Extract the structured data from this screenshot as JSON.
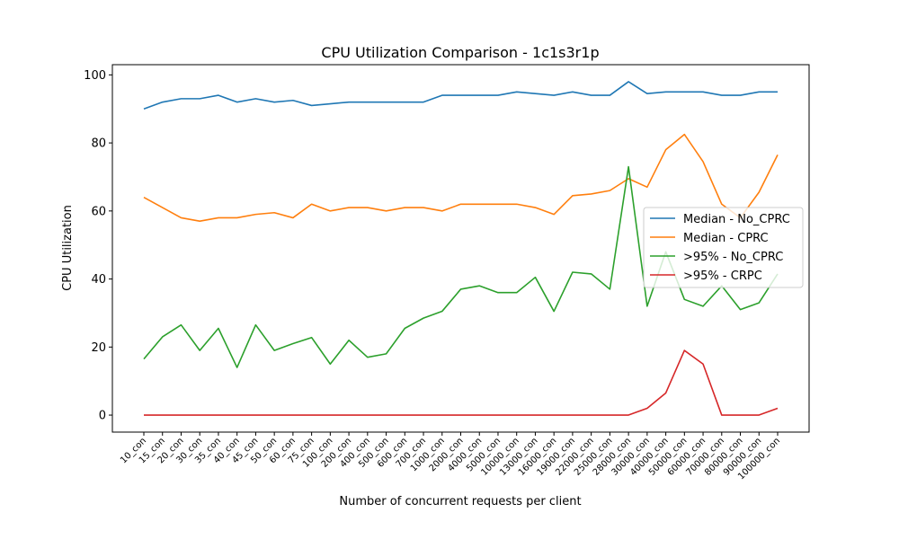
{
  "chart_data": {
    "type": "line",
    "title": "CPU Utilization Comparison - 1c1s3r1p",
    "xlabel": "Number of concurrent requests per client",
    "ylabel": "CPU Utilization",
    "ylim": [
      -5,
      103
    ],
    "yticks": [
      0,
      20,
      40,
      60,
      80,
      100
    ],
    "grid": false,
    "legend_position": "right",
    "categories": [
      "10_con",
      "15_con",
      "20_con",
      "30_con",
      "35_con",
      "40_con",
      "45_con",
      "50_con",
      "60_con",
      "75_con",
      "100_con",
      "200_con",
      "400_con",
      "500_con",
      "600_con",
      "700_con",
      "1000_con",
      "2000_con",
      "4000_con",
      "5000_con",
      "10000_con",
      "13000_con",
      "16000_con",
      "19000_con",
      "22000_con",
      "25000_con",
      "28000_con",
      "30000_con",
      "40000_con",
      "50000_con",
      "60000_con",
      "70000_con",
      "80000_con",
      "90000_con",
      "100000_con"
    ],
    "series": [
      {
        "name": "Median - No_CPRC",
        "color": "#1f77b4",
        "values": [
          90,
          92,
          93,
          93,
          94,
          92,
          93,
          92,
          92.5,
          91,
          91.5,
          92,
          92,
          92,
          92,
          92,
          94,
          94,
          94,
          94,
          95,
          94.5,
          94,
          95,
          94,
          94,
          98,
          94.5,
          95,
          95,
          95,
          94,
          94,
          95,
          95
        ]
      },
      {
        "name": "Median - CPRC",
        "color": "#ff7f0e",
        "values": [
          64,
          61,
          58,
          57,
          58,
          58,
          59,
          59.5,
          58,
          62,
          60,
          61,
          61,
          60,
          61,
          61,
          60,
          62,
          62,
          62,
          62,
          61,
          59,
          64.5,
          65,
          66,
          69.5,
          67,
          78,
          82.5,
          74.5,
          62,
          58,
          65.5,
          76.5
        ]
      },
      {
        "name": ">95% - No_CPRC",
        "color": "#2ca02c",
        "values": [
          16.5,
          23,
          26.5,
          19,
          25.5,
          14,
          26.5,
          19,
          21,
          22.8,
          15,
          22,
          17,
          18,
          25.5,
          28.5,
          30.5,
          37,
          38,
          36,
          36,
          40.5,
          30.5,
          42,
          41.5,
          37,
          73,
          32,
          48,
          34,
          32,
          38,
          31,
          33,
          41.5
        ]
      },
      {
        "name": ">95% - CRPC",
        "color": "#d62728",
        "values": [
          0,
          0,
          0,
          0,
          0,
          0,
          0,
          0,
          0,
          0,
          0,
          0,
          0,
          0,
          0,
          0,
          0,
          0,
          0,
          0,
          0,
          0,
          0,
          0,
          0,
          0,
          0,
          2,
          6.5,
          19,
          15,
          0,
          0,
          0,
          2
        ]
      }
    ]
  }
}
